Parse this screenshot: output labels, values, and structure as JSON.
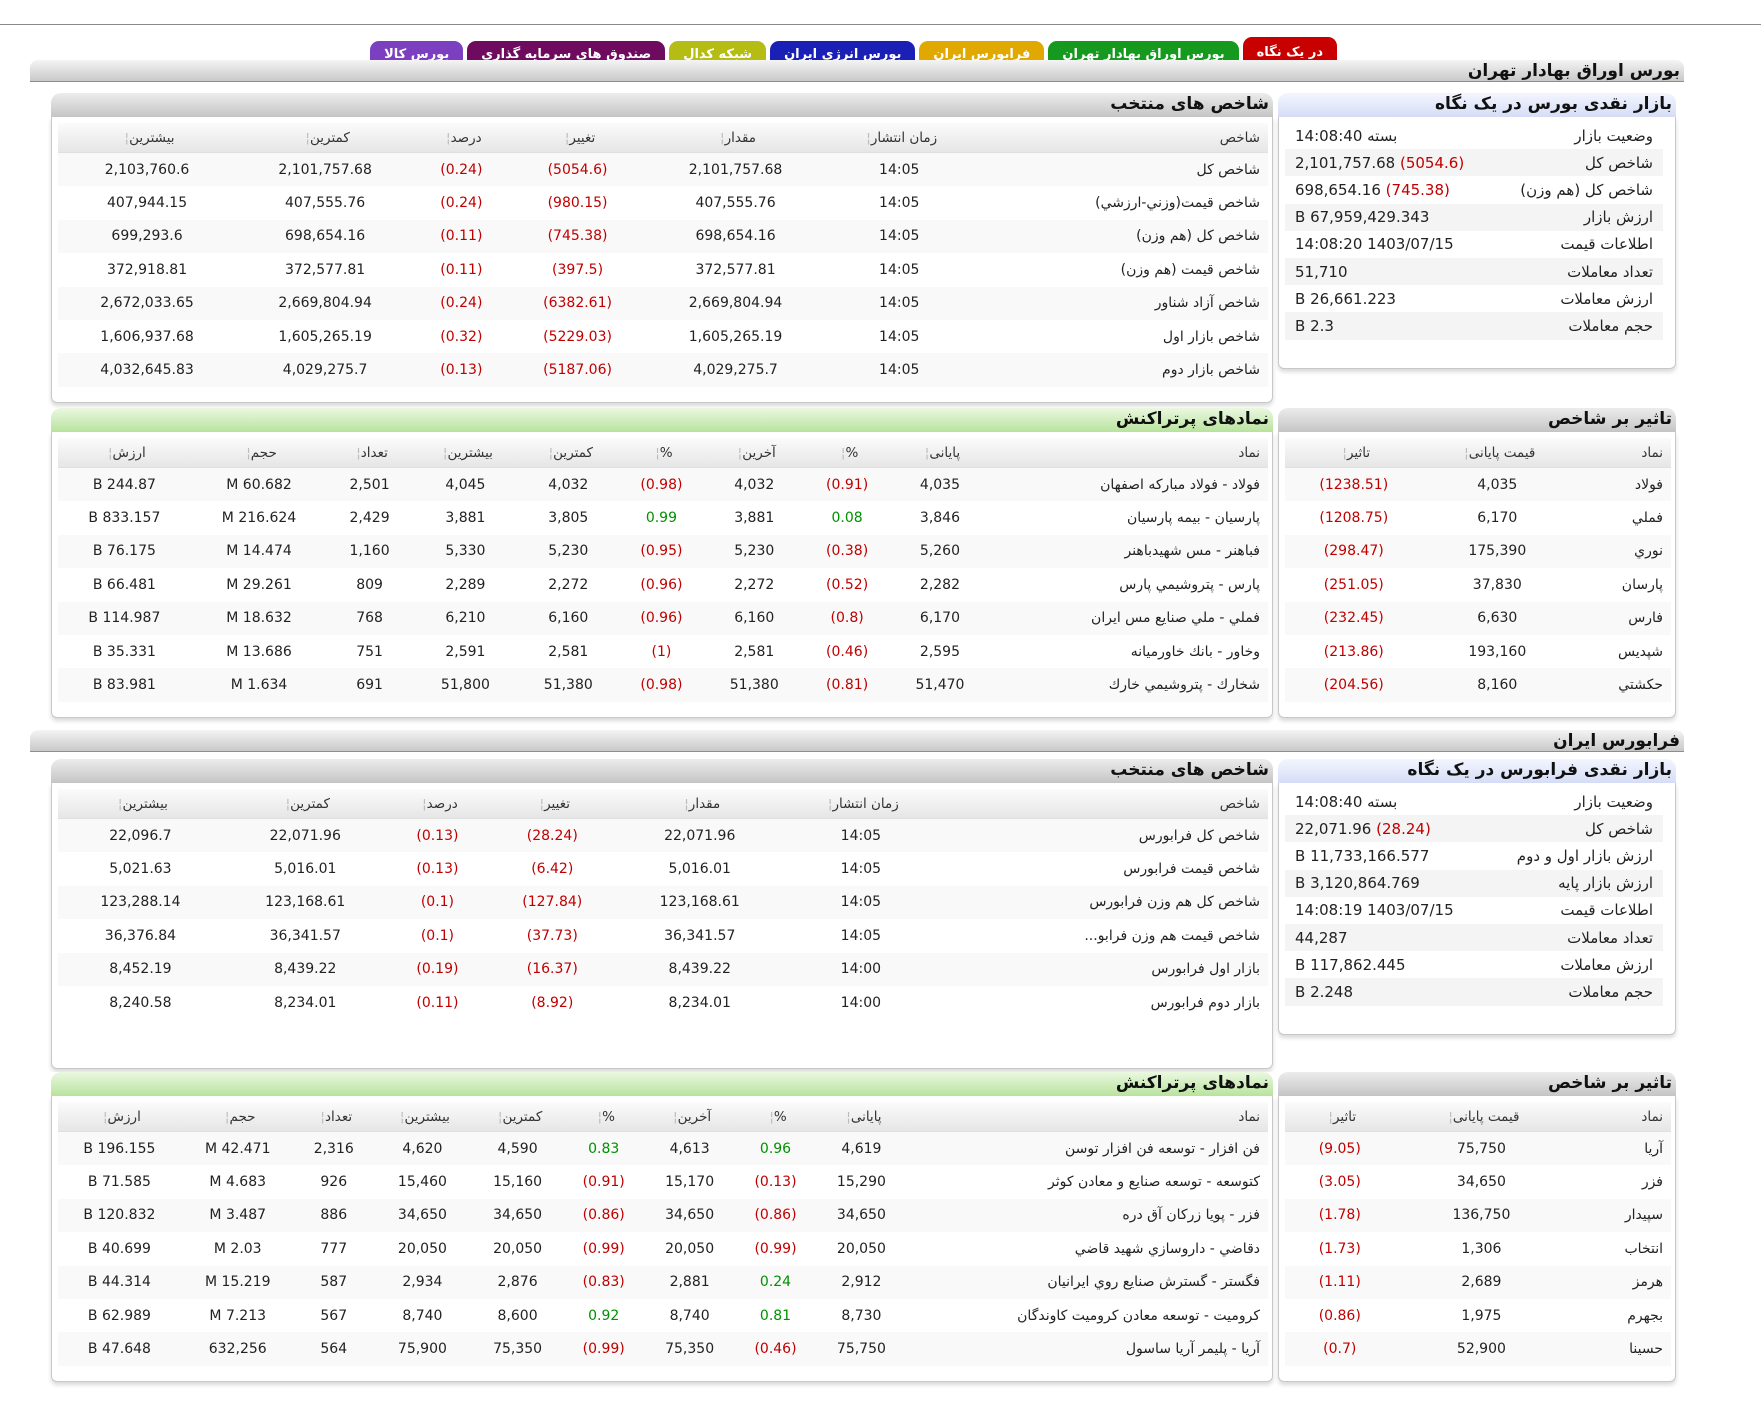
{
  "tabs": [
    {
      "label": "در یک نگاه",
      "color": "#c80000"
    },
    {
      "label": "بورس اوراق بهادار تهران",
      "color": "#159a1f"
    },
    {
      "label": "فرابورس ایران",
      "color": "#e0a800"
    },
    {
      "label": "بورس انرژی ایران",
      "color": "#1a1fb5"
    },
    {
      "label": "شبکه کدال",
      "color": "#b5bd14"
    },
    {
      "label": "صندوق های سرمایه گذاری",
      "color": "#6e0b5f"
    },
    {
      "label": "بورس کالا",
      "color": "#7c3fc0"
    }
  ],
  "tehran": {
    "section_title": "بورس اوراق بهادار تهران",
    "overview": {
      "title": "بازار نقدی بورس در یک نگاه",
      "rows": [
        {
          "label": "وضعیت بازار",
          "value": "بسته 14:08:40"
        },
        {
          "label": "شاخص کل",
          "change": "(5054.6)",
          "value": "2,101,757.68"
        },
        {
          "label": "شاخص کل (هم وزن)",
          "change": "(745.38)",
          "value": "698,654.16"
        },
        {
          "label": "ارزش بازار",
          "value": "67,959,429.343 B"
        },
        {
          "label": "اطلاعات قیمت",
          "value": "1403/07/15 14:08:20"
        },
        {
          "label": "تعداد معاملات",
          "value": "51,710"
        },
        {
          "label": "ارزش معاملات",
          "value": "26,661.223 B"
        },
        {
          "label": "حجم معاملات",
          "value": "2.3 B"
        }
      ]
    },
    "indices": {
      "title": "شاخص های منتخب",
      "headers": [
        "شاخص",
        "زمان انتشار",
        "مقدار",
        "تغییر",
        "درصد",
        "کمترین",
        "بیشترین"
      ],
      "rows": [
        [
          "شاخص كل",
          "14:05",
          "2,101,757.68",
          "(5054.6)",
          "(0.24)",
          "2,101,757.68",
          "2,103,760.6"
        ],
        [
          "شاخص قيمت(وزني-ارزشي)",
          "14:05",
          "407,555.76",
          "(980.15)",
          "(0.24)",
          "407,555.76",
          "407,944.15"
        ],
        [
          "شاخص كل (هم وزن)",
          "14:05",
          "698,654.16",
          "(745.38)",
          "(0.11)",
          "698,654.16",
          "699,293.6"
        ],
        [
          "شاخص قيمت (هم وزن)",
          "14:05",
          "372,577.81",
          "(397.5)",
          "(0.11)",
          "372,577.81",
          "372,918.81"
        ],
        [
          "شاخص آزاد شناور",
          "14:05",
          "2,669,804.94",
          "(6382.61)",
          "(0.24)",
          "2,669,804.94",
          "2,672,033.65"
        ],
        [
          "شاخص بازار اول",
          "14:05",
          "1,605,265.19",
          "(5229.03)",
          "(0.32)",
          "1,605,265.19",
          "1,606,937.68"
        ],
        [
          "شاخص بازار دوم",
          "14:05",
          "4,029,275.7",
          "(5187.06)",
          "(0.13)",
          "4,029,275.7",
          "4,032,645.83"
        ]
      ]
    },
    "impact": {
      "title": "تاثیر بر شاخص",
      "headers": [
        "نماد",
        "قیمت پایانی",
        "تاثیر"
      ],
      "rows": [
        [
          "فولاد",
          "4,035",
          "(1238.51)"
        ],
        [
          "فملي",
          "6,170",
          "(1208.75)"
        ],
        [
          "نوري",
          "175,390",
          "(298.47)"
        ],
        [
          "پارسان",
          "37,830",
          "(251.05)"
        ],
        [
          "فارس",
          "6,630",
          "(232.45)"
        ],
        [
          "شپديس",
          "193,160",
          "(213.86)"
        ],
        [
          "حكشتي",
          "8,160",
          "(204.56)"
        ]
      ]
    },
    "active": {
      "title": "نمادهای پرتراکنش",
      "headers": [
        "نماد",
        "پایانی",
        "%",
        "آخرین",
        "%",
        "کمترین",
        "بیشترین",
        "تعداد",
        "حجم",
        "ارزش"
      ],
      "rows": [
        [
          "فولاد - فولاد مباركه اصفهان",
          "4,035",
          "(0.91)",
          "4,032",
          "(0.98)",
          "4,032",
          "4,045",
          "2,501",
          "60.682 M",
          "244.87 B"
        ],
        [
          "پارسيان - بيمه پارسيان",
          "3,846",
          "0.08",
          "3,881",
          "0.99",
          "3,805",
          "3,881",
          "2,429",
          "216.624 M",
          "833.157 B"
        ],
        [
          "فباهنر - مس شهيدباهنر",
          "5,260",
          "(0.38)",
          "5,230",
          "(0.95)",
          "5,230",
          "5,330",
          "1,160",
          "14.474 M",
          "76.175 B"
        ],
        [
          "پارس - پتروشيمي پارس",
          "2,282",
          "(0.52)",
          "2,272",
          "(0.96)",
          "2,272",
          "2,289",
          "809",
          "29.261 M",
          "66.481 B"
        ],
        [
          "فملي - ملي صنايع مس ايران",
          "6,170",
          "(0.8)",
          "6,160",
          "(0.96)",
          "6,160",
          "6,210",
          "768",
          "18.632 M",
          "114.987 B"
        ],
        [
          "وخاور - بانك خاورميانه",
          "2,595",
          "(0.46)",
          "2,581",
          "(1)",
          "2,581",
          "2,591",
          "751",
          "13.686 M",
          "35.331 B"
        ],
        [
          "شخارك - پتروشيمي خارك",
          "51,470",
          "(0.81)",
          "51,380",
          "(0.98)",
          "51,380",
          "51,800",
          "691",
          "1.634 M",
          "83.981 B"
        ]
      ]
    }
  },
  "farabourse": {
    "section_title": "فرابورس ایران",
    "overview": {
      "title": "بازار نقدی فرابورس در یک نگاه",
      "rows": [
        {
          "label": "وضعیت بازار",
          "value": "بسته 14:08:40"
        },
        {
          "label": "شاخص کل",
          "change": "(28.24)",
          "value": "22,071.96"
        },
        {
          "label": "ارزش بازار اول و دوم",
          "value": "11,733,166.577 B"
        },
        {
          "label": "ارزش بازار پایه",
          "value": "3,120,864.769 B"
        },
        {
          "label": "اطلاعات قیمت",
          "value": "1403/07/15 14:08:19"
        },
        {
          "label": "تعداد معاملات",
          "value": "44,287"
        },
        {
          "label": "ارزش معاملات",
          "value": "117,862.445 B"
        },
        {
          "label": "حجم معاملات",
          "value": "2.248 B"
        }
      ]
    },
    "indices": {
      "title": "شاخص های منتخب",
      "headers": [
        "شاخص",
        "زمان انتشار",
        "مقدار",
        "تغییر",
        "درصد",
        "کمترین",
        "بیشترین"
      ],
      "rows": [
        [
          "شاخص كل فرابورس",
          "14:05",
          "22,071.96",
          "(28.24)",
          "(0.13)",
          "22,071.96",
          "22,096.7"
        ],
        [
          "شاخص قیمت فرابورس",
          "14:05",
          "5,016.01",
          "(6.42)",
          "(0.13)",
          "5,016.01",
          "5,021.63"
        ],
        [
          "شاخص کل هم وزن فرابورس",
          "14:05",
          "123,168.61",
          "(127.84)",
          "(0.1)",
          "123,168.61",
          "123,288.14"
        ],
        [
          "شاخص قیمت هم وزن فرابو...",
          "14:05",
          "36,341.57",
          "(37.73)",
          "(0.1)",
          "36,341.57",
          "36,376.84"
        ],
        [
          "بازار اول فرابورس",
          "14:00",
          "8,439.22",
          "(16.37)",
          "(0.19)",
          "8,439.22",
          "8,452.19"
        ],
        [
          "بازار دوم فرابورس",
          "14:00",
          "8,234.01",
          "(8.92)",
          "(0.11)",
          "8,234.01",
          "8,240.58"
        ]
      ]
    },
    "impact": {
      "title": "تاثیر بر شاخص",
      "headers": [
        "نماد",
        "قیمت پایانی",
        "تاثیر"
      ],
      "rows": [
        [
          "آريا",
          "75,750",
          "(9.05)"
        ],
        [
          "فزر",
          "34,650",
          "(3.05)"
        ],
        [
          "سپيدار",
          "136,750",
          "(1.78)"
        ],
        [
          "انتخاب",
          "1,306",
          "(1.73)"
        ],
        [
          "هرمز",
          "2,689",
          "(1.11)"
        ],
        [
          "بجهرم",
          "1,975",
          "(0.86)"
        ],
        [
          "حسينا",
          "52,900",
          "(0.7)"
        ]
      ]
    },
    "active": {
      "title": "نمادهای پرتراکنش",
      "headers": [
        "نماد",
        "پایانی",
        "%",
        "آخرین",
        "%",
        "کمترین",
        "بیشترین",
        "تعداد",
        "حجم",
        "ارزش"
      ],
      "rows": [
        [
          "فن افزار - توسعه فن افزار توسن",
          "4,619",
          "0.96",
          "4,613",
          "0.83",
          "4,590",
          "4,620",
          "2,316",
          "42.471 M",
          "196.155 B"
        ],
        [
          "كتوسعه - توسعه صنايع و معادن كوثر",
          "15,290",
          "(0.13)",
          "15,170",
          "(0.91)",
          "15,160",
          "15,460",
          "926",
          "4.683 M",
          "71.585 B"
        ],
        [
          "فزر - پويا زركان آق دره",
          "34,650",
          "(0.86)",
          "34,650",
          "(0.86)",
          "34,650",
          "34,650",
          "886",
          "3.487 M",
          "120.832 B"
        ],
        [
          "دقاضي - داروسازي شهيد قاضي",
          "20,050",
          "(0.99)",
          "20,050",
          "(0.99)",
          "20,050",
          "20,050",
          "777",
          "2.03 M",
          "40.699 B"
        ],
        [
          "فگستر - گسترش صنايع روي ايرانيان",
          "2,912",
          "0.24",
          "2,881",
          "(0.83)",
          "2,876",
          "2,934",
          "587",
          "15.219 M",
          "44.314 B"
        ],
        [
          "كروميت - توسعه معادن كروميت كاوندگان",
          "8,730",
          "0.81",
          "8,740",
          "0.92",
          "8,600",
          "8,740",
          "567",
          "7.213 M",
          "62.989 B"
        ],
        [
          "آريا - پليمر آريا ساسول",
          "75,750",
          "(0.46)",
          "75,350",
          "(0.99)",
          "75,350",
          "75,900",
          "564",
          "632,256",
          "47.648 B"
        ]
      ]
    }
  }
}
